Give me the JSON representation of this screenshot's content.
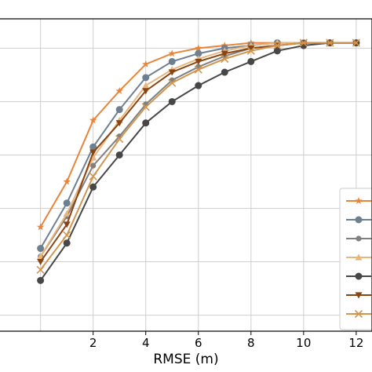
{
  "chart_data": {
    "type": "line",
    "xlabel": "RMSE (m)",
    "ylabel": "",
    "title": "",
    "xlim": [
      0,
      12.7
    ],
    "ylim": [
      0,
      1.08
    ],
    "xticks": [
      2,
      4,
      6,
      8,
      10,
      12
    ],
    "x": [
      0,
      1,
      2,
      3,
      4,
      5,
      6,
      7,
      8,
      9,
      10,
      11,
      12
    ],
    "grid": true,
    "legend_position": "lower-right",
    "series": [
      {
        "marker": "star",
        "color": "#E8853B",
        "values": [
          0.33,
          0.5,
          0.73,
          0.84,
          0.94,
          0.98,
          1.0,
          1.01,
          1.02,
          1.02,
          1.02,
          1.02,
          1.02
        ]
      },
      {
        "marker": "circle",
        "color": "#6E8090",
        "values": [
          0.25,
          0.42,
          0.63,
          0.77,
          0.89,
          0.95,
          0.98,
          1.0,
          1.01,
          1.02,
          1.02,
          1.02,
          1.02
        ]
      },
      {
        "marker": "small-circle",
        "color": "#808080",
        "values": [
          0.22,
          0.37,
          0.56,
          0.67,
          0.79,
          0.88,
          0.93,
          0.97,
          1.0,
          1.01,
          1.02,
          1.02,
          1.02
        ]
      },
      {
        "marker": "triangle-up",
        "color": "#E8B57C",
        "values": [
          0.22,
          0.38,
          0.59,
          0.73,
          0.86,
          0.92,
          0.96,
          0.99,
          1.01,
          1.02,
          1.02,
          1.02,
          1.02
        ]
      },
      {
        "marker": "circle",
        "color": "#474747",
        "values": [
          0.13,
          0.27,
          0.48,
          0.6,
          0.72,
          0.8,
          0.86,
          0.91,
          0.95,
          0.99,
          1.01,
          1.02,
          1.02
        ]
      },
      {
        "marker": "triangle-down",
        "color": "#8B4513",
        "values": [
          0.2,
          0.34,
          0.61,
          0.72,
          0.84,
          0.91,
          0.95,
          0.98,
          1.0,
          1.01,
          1.02,
          1.02,
          1.02
        ]
      },
      {
        "marker": "x",
        "color": "#D09550",
        "values": [
          0.17,
          0.3,
          0.52,
          0.66,
          0.78,
          0.87,
          0.92,
          0.96,
          0.99,
          1.01,
          1.02,
          1.02,
          1.02
        ]
      }
    ]
  }
}
